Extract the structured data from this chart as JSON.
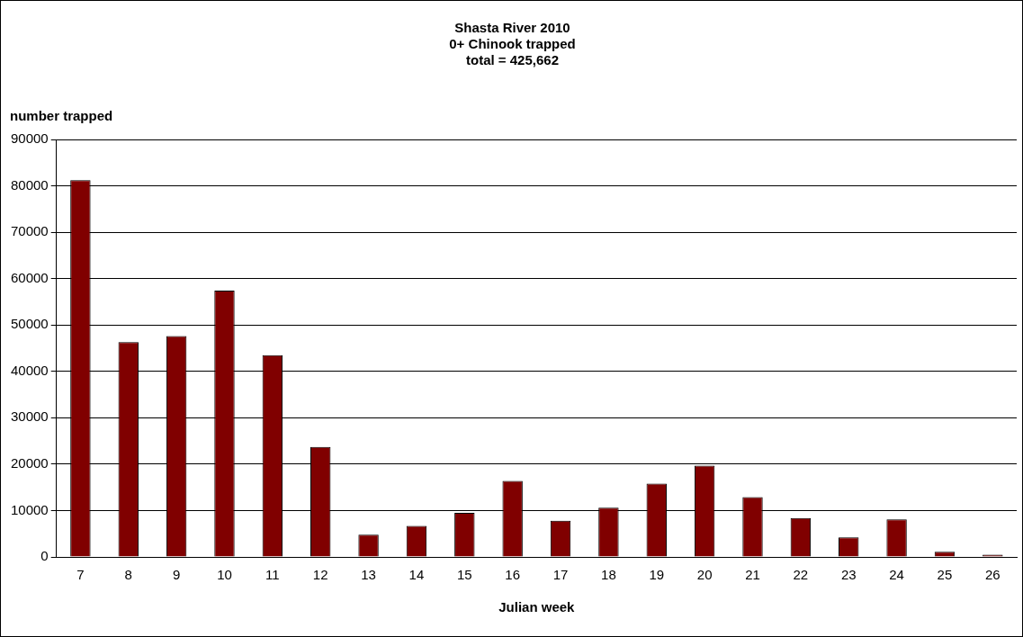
{
  "chart_data": {
    "type": "bar",
    "title": "Shasta River 2010\n0+ Chinook trapped\ntotal = 425,662",
    "xlabel": "Julian week",
    "ylabel": "number trapped",
    "categories": [
      "7",
      "8",
      "9",
      "10",
      "11",
      "12",
      "13",
      "14",
      "15",
      "16",
      "17",
      "18",
      "19",
      "20",
      "21",
      "22",
      "23",
      "24",
      "25",
      "26"
    ],
    "values": [
      81200,
      46300,
      47600,
      57400,
      43500,
      23700,
      4800,
      6700,
      9500,
      16400,
      7800,
      10600,
      15800,
      19700,
      12900,
      8400,
      4200,
      8100,
      1100,
      500
    ],
    "color": "#800000",
    "ylim": [
      0,
      90000
    ],
    "yticks": [
      0,
      10000,
      20000,
      30000,
      40000,
      50000,
      60000,
      70000,
      80000,
      90000
    ],
    "grid": "y",
    "legend": false
  }
}
